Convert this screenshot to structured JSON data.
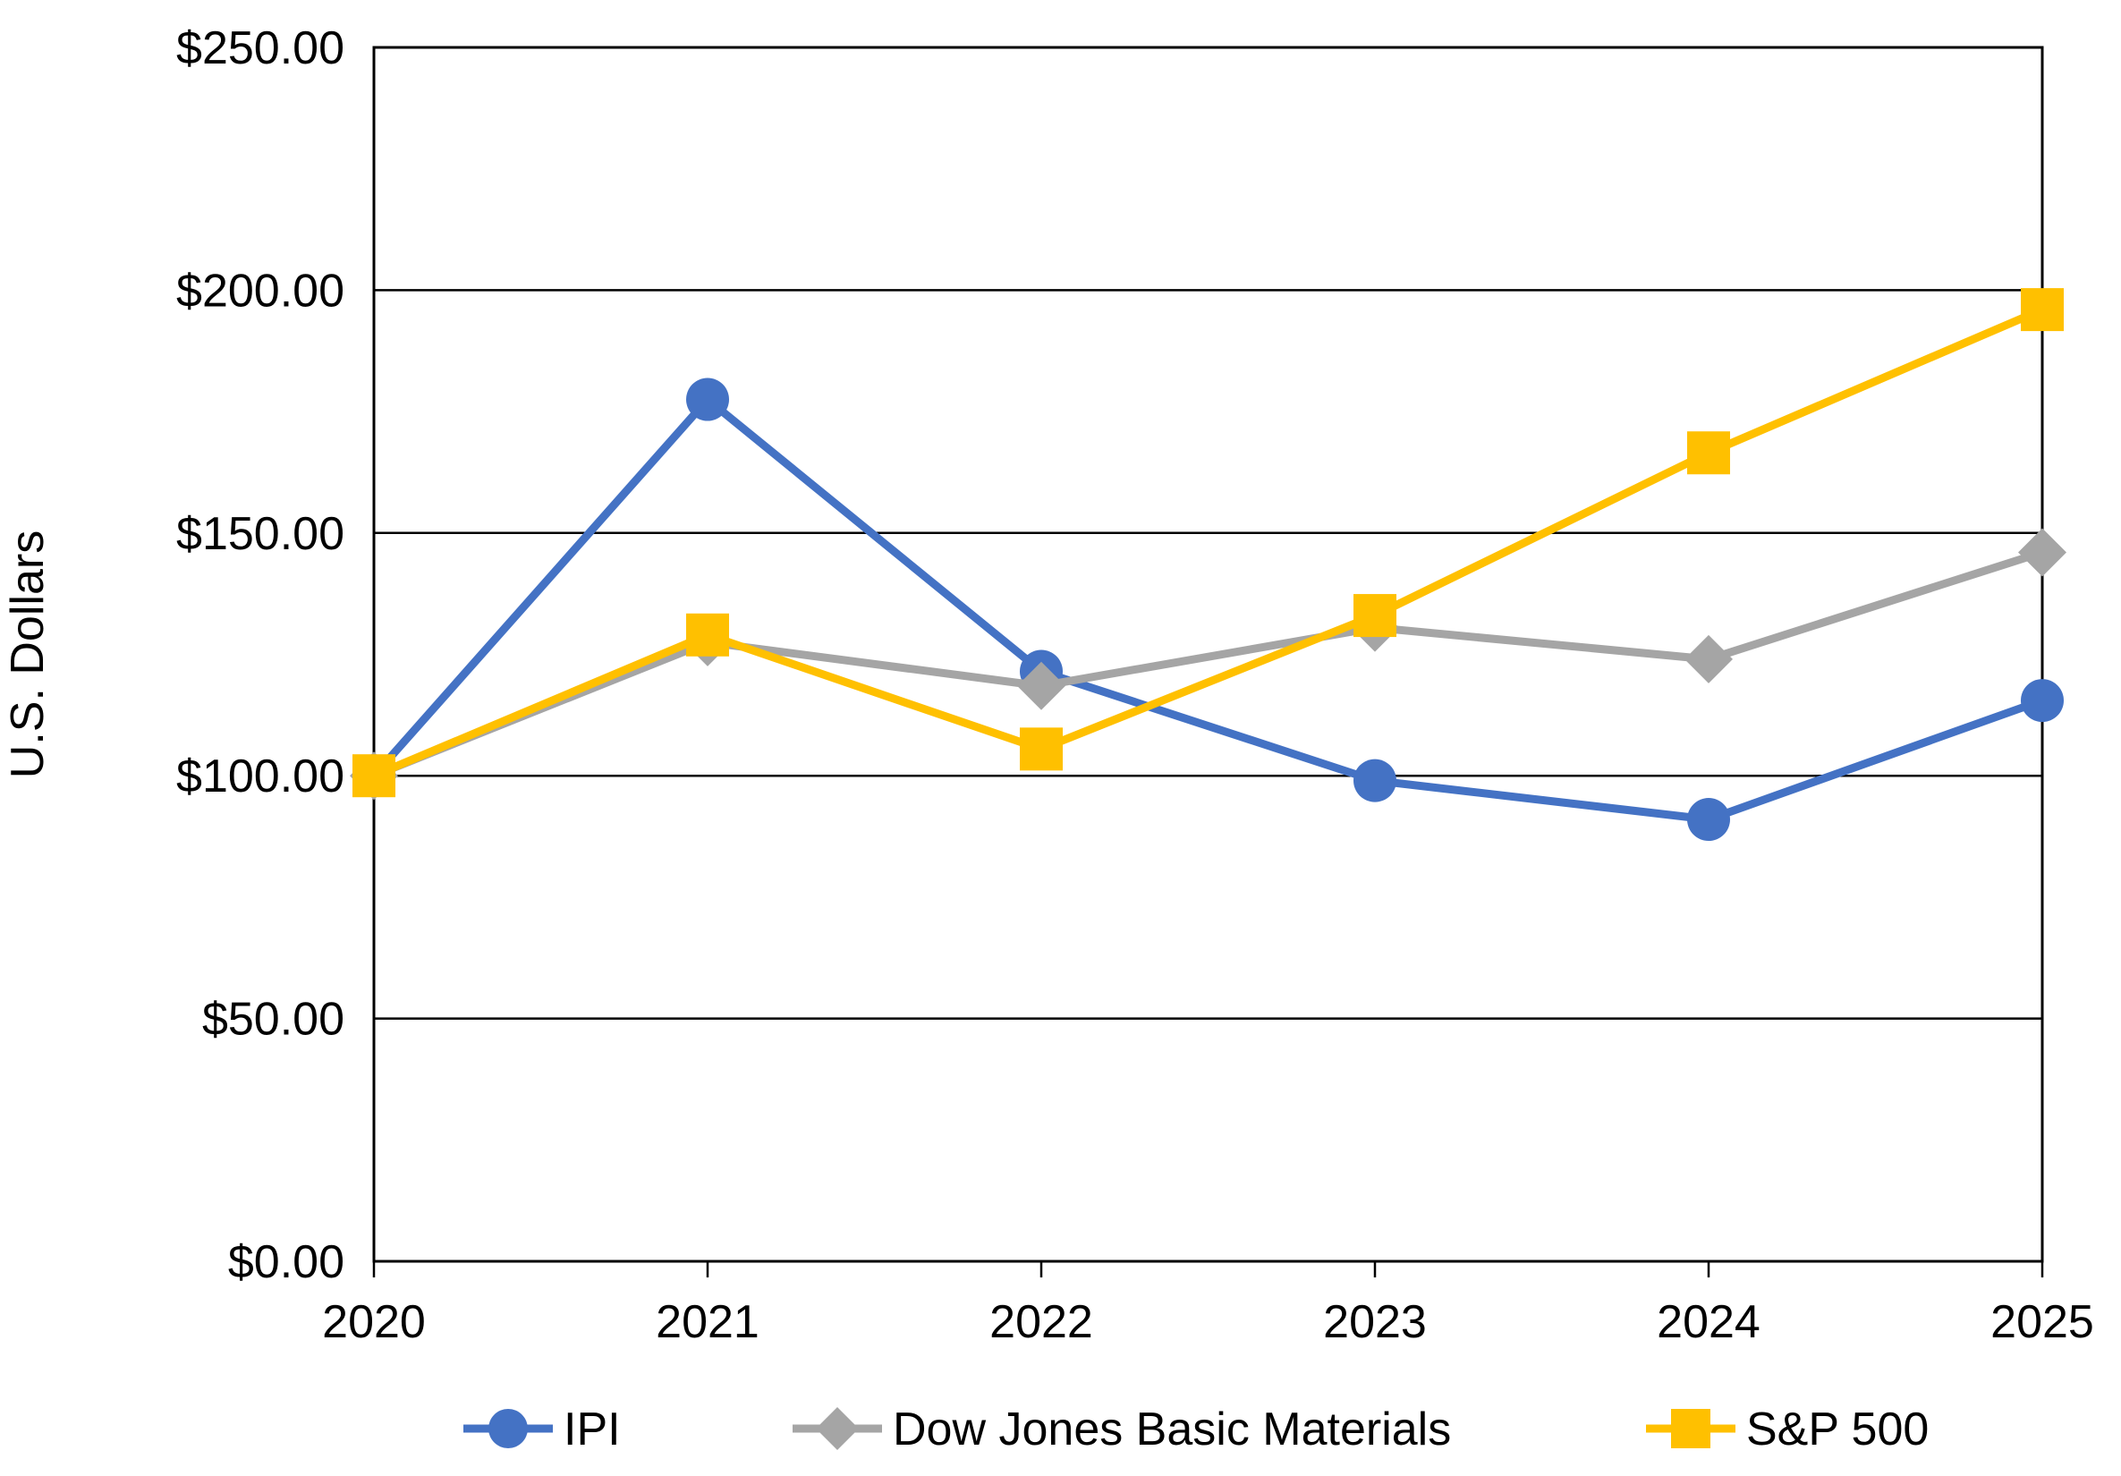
{
  "chart_data": {
    "type": "line",
    "ylabel": "U.S. Dollars",
    "ylim": [
      0,
      250
    ],
    "y_tick_step": 50,
    "y_tick_labels": [
      "$0.00",
      "$50.00",
      "$100.00",
      "$150.00",
      "$200.00",
      "$250.00"
    ],
    "x_labels": [
      "2020",
      "2021",
      "2022",
      "2023",
      "2024",
      "2025"
    ],
    "grid": "horizontal",
    "plot_border": true,
    "legend_position": "bottom",
    "axis_color": "#000000",
    "background_color": "#FFFFFF",
    "series": [
      {
        "name": "IPI",
        "marker": "circle",
        "color": "#4472C4",
        "values": [
          100.0,
          177.5,
          121.5,
          99.0,
          91.0,
          115.5
        ]
      },
      {
        "name": "Dow Jones Basic Materials",
        "marker": "diamond",
        "color": "#A5A5A5",
        "values": [
          100.0,
          127.5,
          118.5,
          130.5,
          124.0,
          146.0
        ]
      },
      {
        "name": "S&P 500",
        "marker": "square",
        "color": "#FFC000",
        "values": [
          100.0,
          129.0,
          105.5,
          133.0,
          166.5,
          196.0
        ]
      }
    ]
  }
}
